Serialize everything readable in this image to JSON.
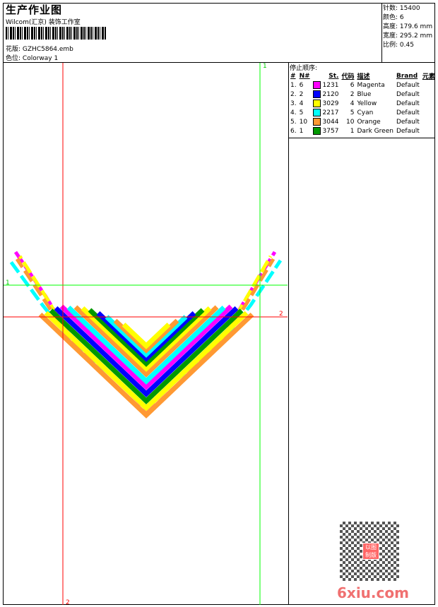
{
  "header": {
    "title": "生产作业图",
    "company": "Wilcom(汇京) 装饰工作室",
    "design_label": "花版:",
    "design_value": "GZHC5864.emb",
    "colorway_label": "色位:",
    "colorway_value": "Colorway 1"
  },
  "info": {
    "stitches_label": "针数:",
    "stitches": "15400",
    "colors_label": "颜色:",
    "colors": "6",
    "height_label": "高度:",
    "height": "179.6 mm",
    "width_label": "宽度:",
    "width": "295.2 mm",
    "scale_label": "比例:",
    "scale": "0.45"
  },
  "stop_sequence": {
    "title": "停止顺序:",
    "columns": [
      "#",
      "N#",
      "St.",
      "代码",
      "描述",
      "Brand",
      "元素"
    ],
    "rows": [
      {
        "index": "1.",
        "n": "6",
        "color": "#ff00ff",
        "st": "1231",
        "code": "6",
        "desc": "Magenta",
        "brand": "Default"
      },
      {
        "index": "2.",
        "n": "2",
        "color": "#0000ff",
        "st": "2120",
        "code": "2",
        "desc": "Blue",
        "brand": "Default"
      },
      {
        "index": "3.",
        "n": "4",
        "color": "#ffff00",
        "st": "3029",
        "code": "4",
        "desc": "Yellow",
        "brand": "Default"
      },
      {
        "index": "4.",
        "n": "5",
        "color": "#00ffff",
        "st": "2217",
        "code": "5",
        "desc": "Cyan",
        "brand": "Default"
      },
      {
        "index": "5.",
        "n": "10",
        "color": "#ff9933",
        "st": "3044",
        "code": "10",
        "desc": "Orange",
        "brand": "Default"
      },
      {
        "index": "6.",
        "n": "1",
        "color": "#009900",
        "st": "3757",
        "code": "1",
        "desc": "Dark Green",
        "brand": "Default"
      }
    ]
  },
  "guides": {
    "green_label": "1",
    "red_label": "2",
    "green": "#00ff00",
    "red": "#ff0000"
  },
  "watermark": {
    "text": "6xiu.com",
    "stamp": "以图制版"
  }
}
